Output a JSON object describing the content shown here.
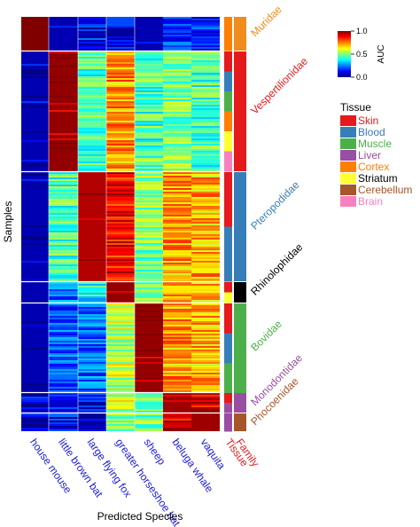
{
  "chart_data": {
    "type": "heatmap",
    "xlabel": "Predicted Species",
    "ylabel": "Samples",
    "columns": [
      "house mouse",
      "little brown bat",
      "large flying fox",
      "greater horseshoe bat",
      "sheep",
      "beluga whale",
      "vaquita"
    ],
    "annotation_columns": [
      "Tissue",
      "Family"
    ],
    "colorbar": {
      "label": "AUC",
      "min": 0.0,
      "max": 1.0,
      "ticks": [
        "0.0",
        "0.5",
        "1.0"
      ]
    },
    "families": [
      {
        "name": "Muridae",
        "color": "#f08c1e",
        "predicted_auc": [
          1.0,
          0.05,
          0.12,
          0.1,
          0.05,
          0.15,
          0.15
        ],
        "tissues": [
          "Cortex"
        ]
      },
      {
        "name": "Vespertilionidae",
        "color": "#e41a1c",
        "predicted_auc": [
          0.05,
          0.98,
          0.45,
          0.72,
          0.45,
          0.5,
          0.45
        ],
        "tissues": [
          "Skin",
          "Blood",
          "Muscle",
          "Cortex",
          "Striatum",
          "Brain"
        ]
      },
      {
        "name": "Pteropodidae",
        "color": "#377eb8",
        "predicted_auc": [
          0.05,
          0.45,
          0.95,
          0.88,
          0.5,
          0.72,
          0.7
        ],
        "tissues": [
          "Skin",
          "Blood"
        ]
      },
      {
        "name": "Rhinolophidae",
        "color": "#000000",
        "predicted_auc": [
          0.05,
          0.22,
          0.38,
          0.98,
          0.52,
          0.72,
          0.7
        ],
        "tissues": [
          "Skin",
          "Striatum"
        ]
      },
      {
        "name": "Bovidae",
        "color": "#4daf4a",
        "predicted_auc": [
          0.05,
          0.2,
          0.22,
          0.55,
          0.98,
          0.72,
          0.7
        ],
        "tissues": [
          "Skin",
          "Blood",
          "Muscle"
        ]
      },
      {
        "name": "Monodontidae",
        "color": "#984ea3",
        "predicted_auc": [
          0.1,
          0.12,
          0.1,
          0.55,
          0.5,
          0.97,
          0.92
        ],
        "tissues": [
          "Skin",
          "Liver"
        ]
      },
      {
        "name": "Phocoenidae",
        "color": "#a65628",
        "predicted_auc": [
          0.1,
          0.12,
          0.1,
          0.5,
          0.5,
          0.9,
          0.97
        ],
        "tissues": [
          "Liver"
        ]
      }
    ]
  },
  "legend": {
    "title": "Tissue",
    "items": [
      {
        "label": "Skin",
        "color": "#e41a1c"
      },
      {
        "label": "Blood",
        "color": "#377eb8"
      },
      {
        "label": "Muscle",
        "color": "#4daf4a"
      },
      {
        "label": "Liver",
        "color": "#984ea3"
      },
      {
        "label": "Cortex",
        "color": "#ff7f00"
      },
      {
        "label": "Striatum",
        "color": "#ffff33"
      },
      {
        "label": "Cerebellum",
        "color": "#a65628"
      },
      {
        "label": "Brain",
        "color": "#f781bf"
      }
    ]
  }
}
